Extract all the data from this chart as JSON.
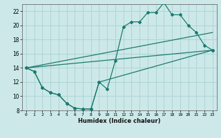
{
  "xlabel": "Humidex (Indice chaleur)",
  "bg_color": "#cce8e8",
  "grid_color": "#b0d4d4",
  "line_color": "#1a7a6e",
  "xlim": [
    -0.5,
    23.5
  ],
  "ylim": [
    8,
    23
  ],
  "xticks": [
    0,
    1,
    2,
    3,
    4,
    5,
    6,
    7,
    8,
    9,
    10,
    11,
    12,
    13,
    14,
    15,
    16,
    17,
    18,
    19,
    20,
    21,
    22,
    23
  ],
  "yticks": [
    8,
    10,
    12,
    14,
    16,
    18,
    20,
    22
  ],
  "curve1_x": [
    0,
    1,
    2,
    3,
    4,
    5,
    6,
    7,
    8,
    9,
    10,
    11,
    12,
    13,
    14,
    15,
    16,
    17,
    18,
    19,
    20,
    21,
    22,
    23
  ],
  "curve1_y": [
    14.0,
    13.5,
    11.2,
    10.5,
    10.2,
    9.0,
    8.3,
    8.2,
    8.2,
    12.0,
    11.0,
    15.0,
    19.8,
    20.5,
    20.5,
    21.8,
    21.8,
    23.2,
    21.5,
    21.5,
    20.0,
    19.0,
    17.2,
    16.5
  ],
  "curve2_x": [
    0,
    1,
    2,
    3,
    4,
    5,
    6,
    7,
    8,
    9,
    23
  ],
  "curve2_y": [
    14.0,
    13.5,
    11.2,
    10.5,
    10.2,
    9.0,
    8.3,
    8.2,
    8.2,
    12.0,
    16.5
  ],
  "curve3_x": [
    0,
    23
  ],
  "curve3_y": [
    14.0,
    16.5
  ],
  "curve4_x": [
    0,
    23
  ],
  "curve4_y": [
    14.0,
    19.0
  ]
}
